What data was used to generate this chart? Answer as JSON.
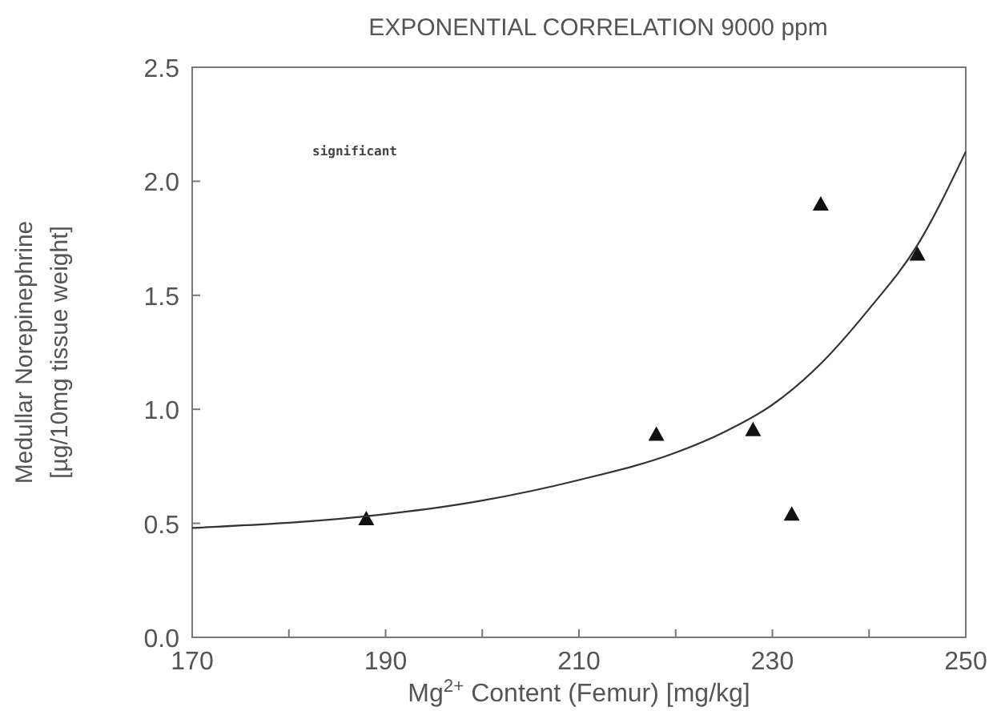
{
  "chart_data": {
    "type": "scatter",
    "title": "EXPONENTIAL CORRELATION 9000 ppm",
    "xlabel": "Mg$^{2+}$ Content (Femur) [mg/kg]",
    "ylabel": "Medullar Norepinephrine\n[µg/10mg tissue weight]",
    "annotations": [
      "significant"
    ],
    "xlim": [
      170,
      250
    ],
    "ylim": [
      0,
      2.5
    ],
    "xticks": [
      170,
      {
        "value": 180,
        "label": null
      },
      190,
      {
        "value": 200,
        "label": null
      },
      210,
      {
        "value": 220,
        "label": null
      },
      230,
      {
        "value": 240,
        "label": null
      },
      250
    ],
    "yticks": [
      {
        "value": 0,
        "label": "0.0"
      },
      0.5,
      {
        "value": 1,
        "label": "1.0"
      },
      1.5,
      {
        "value": 2,
        "label": "2.0"
      },
      2.5
    ],
    "grid": false,
    "series": [
      {
        "color": "#111111",
        "marker": "triangle",
        "x": [
          188,
          218,
          228,
          232,
          235,
          245
        ],
        "values": [
          0.52,
          0.89,
          0.91,
          0.54,
          1.9,
          1.68
        ]
      },
      {
        "type": "line",
        "color": "#333333",
        "marker": "none",
        "line_style": "solid",
        "x": [
          170,
          190,
          200,
          210,
          220,
          225,
          230,
          235,
          240,
          245,
          250
        ],
        "values": [
          0.48,
          0.54,
          0.6,
          0.69,
          0.81,
          0.9,
          1.02,
          1.2,
          1.44,
          1.72,
          2.13
        ]
      }
    ]
  }
}
